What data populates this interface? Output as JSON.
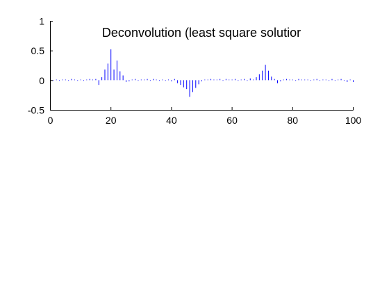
{
  "chart_data": {
    "type": "stem",
    "title": "Deconvolution (least square solutior",
    "xlabel": "",
    "ylabel": "",
    "xlim": [
      0,
      100
    ],
    "ylim": [
      -0.5,
      1
    ],
    "x_ticks": [
      "0",
      "20",
      "40",
      "60",
      "80",
      "100"
    ],
    "y_ticks": [
      "1",
      "0.5",
      "0",
      "-0.5"
    ],
    "grid": false,
    "legend": "none",
    "baseline": 0,
    "stem_color": "#0000ff",
    "axis_color": "#000000",
    "series": [
      {
        "x": [
          0,
          1,
          2,
          3,
          4,
          5,
          6,
          7,
          8,
          9,
          10,
          11,
          12,
          13,
          14,
          15,
          16,
          17,
          18,
          19,
          20,
          21,
          22,
          23,
          24,
          25,
          26,
          27,
          28,
          29,
          30,
          31,
          32,
          33,
          34,
          35,
          36,
          37,
          38,
          39,
          40,
          41,
          42,
          43,
          44,
          45,
          46,
          47,
          48,
          49,
          50,
          51,
          52,
          53,
          54,
          55,
          56,
          57,
          58,
          59,
          60,
          61,
          62,
          63,
          64,
          65,
          66,
          67,
          68,
          69,
          70,
          71,
          72,
          73,
          74,
          75,
          76,
          77,
          78,
          79,
          80,
          81,
          82,
          83,
          84,
          85,
          86,
          87,
          88,
          89,
          90,
          91,
          92,
          93,
          94,
          95,
          96,
          97,
          98,
          99,
          100
        ],
        "y": [
          0.005,
          -0.01,
          0.01,
          -0.01,
          0.01,
          0.01,
          -0.01,
          0.02,
          0.01,
          -0.01,
          0.01,
          -0.01,
          0.01,
          0.02,
          0.01,
          0.02,
          -0.08,
          0.05,
          0.18,
          0.28,
          0.52,
          0.18,
          0.33,
          0.15,
          0.08,
          -0.03,
          -0.02,
          0.01,
          0.02,
          -0.01,
          0.01,
          0.01,
          0.02,
          -0.01,
          0.02,
          0.01,
          -0.01,
          0.01,
          -0.01,
          0.01,
          -0.02,
          0.02,
          -0.05,
          -0.08,
          -0.12,
          -0.15,
          -0.28,
          -0.2,
          -0.13,
          -0.07,
          -0.02,
          0.01,
          0.01,
          0.02,
          0.01,
          0.01,
          0.02,
          -0.01,
          0.02,
          0.01,
          0.01,
          0.02,
          -0.01,
          0.01,
          0.02,
          -0.01,
          0.03,
          0.01,
          0.05,
          0.1,
          0.16,
          0.26,
          0.16,
          0.06,
          0.02,
          -0.05,
          -0.02,
          0.01,
          0.02,
          0.01,
          0.01,
          -0.01,
          0.02,
          0.01,
          0.01,
          0.01,
          -0.01,
          0.01,
          0.02,
          -0.01,
          0.01,
          0.01,
          -0.01,
          0.02,
          -0.01,
          0.01,
          0.02,
          -0.01,
          -0.03,
          0.01,
          -0.03
        ]
      }
    ]
  }
}
